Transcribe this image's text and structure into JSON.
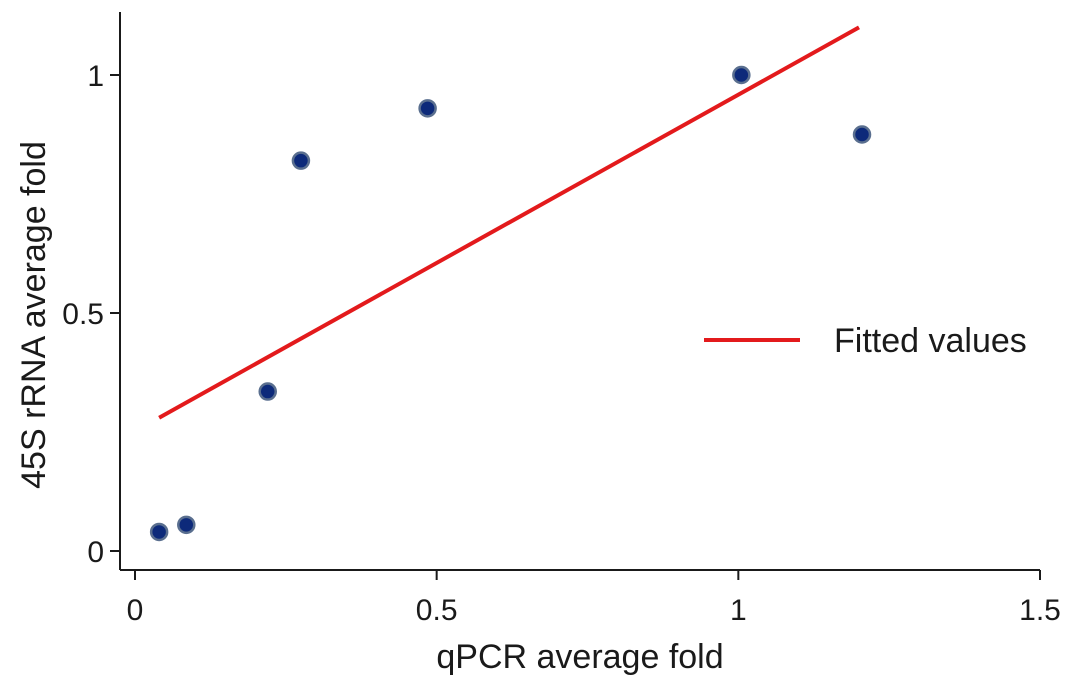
{
  "chart_data": {
    "type": "scatter",
    "xlabel": "qPCR average fold",
    "ylabel": "45S rRNA average fold",
    "xlim": [
      0,
      1.5
    ],
    "ylim": [
      0,
      1
    ],
    "xticks": [
      "0",
      "0.5",
      "1",
      "1.5"
    ],
    "yticks": [
      "0",
      "0.5",
      "1"
    ],
    "grid": false,
    "legend_position": "right",
    "series": [
      {
        "type": "scatter",
        "color": "#0d2a7a",
        "points": [
          {
            "x": 0.04,
            "y": 0.04
          },
          {
            "x": 0.085,
            "y": 0.055
          },
          {
            "x": 0.22,
            "y": 0.335
          },
          {
            "x": 0.275,
            "y": 0.82
          },
          {
            "x": 0.485,
            "y": 0.93
          },
          {
            "x": 1.005,
            "y": 1.0
          },
          {
            "x": 1.205,
            "y": 0.875
          }
        ]
      },
      {
        "type": "line",
        "name": "Fitted values",
        "color": "#e31a1c",
        "points": [
          {
            "x": 0.04,
            "y": 0.28
          },
          {
            "x": 1.2,
            "y": 1.1
          }
        ]
      }
    ]
  }
}
